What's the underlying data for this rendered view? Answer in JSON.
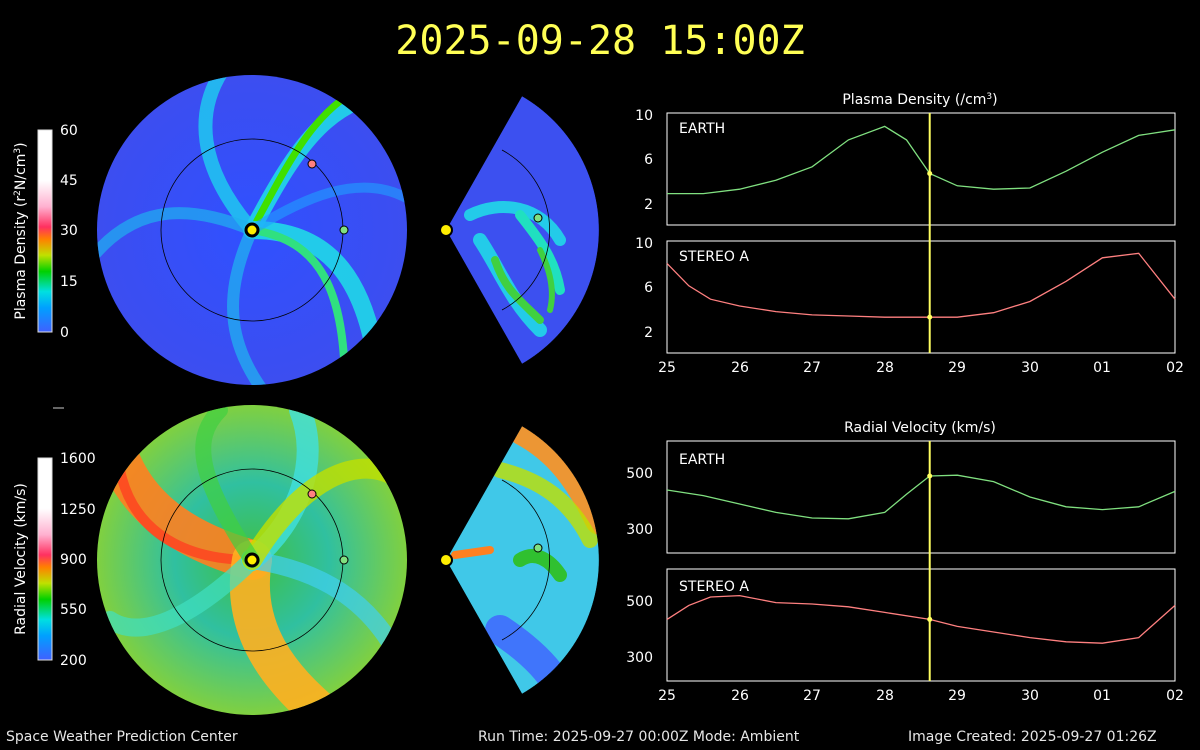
{
  "title": "2025-09-28 15:00Z",
  "footer": {
    "left": "Space Weather Prediction Center",
    "run": "Run Time: 2025-09-27 00:00Z  Mode: Ambient",
    "created": "Image Created: 2025-09-27 01:26Z"
  },
  "colorbars": [
    {
      "label_main": "Plasma Density (r",
      "label_sup1": "2",
      "label_mid": "N/cm",
      "label_sup2": "3",
      "label_end": ")",
      "ticks": [
        "60",
        "45",
        "30",
        "15",
        "0"
      ]
    },
    {
      "label_main": "Radial Velocity (km/s)",
      "ticks": [
        "1600",
        "1250",
        "900",
        "550",
        "200"
      ]
    }
  ],
  "colors": {
    "earth": "#80e080",
    "stereo": "#ff8080",
    "marker": "#ffff60",
    "title": "#ffff55",
    "sun": "#ffee00"
  },
  "chart_data": [
    {
      "type": "line",
      "title_main": "Plasma Density (/cm",
      "title_sup": "3",
      "title_end": ")",
      "x_ticks": [
        "25",
        "26",
        "27",
        "28",
        "29",
        "30",
        "01",
        "02"
      ],
      "current_time_index": 3.62,
      "panels": [
        {
          "label": "EARTH",
          "color": "#80e080",
          "ylim": [
            0,
            10
          ],
          "yticks": [
            "2",
            "6",
            "10"
          ],
          "x": [
            0,
            0.5,
            1,
            1.5,
            2,
            2.5,
            3,
            3.3,
            3.62,
            4,
            4.5,
            5,
            5.5,
            6,
            6.5,
            7
          ],
          "y": [
            2.8,
            2.8,
            3.2,
            4.0,
            5.2,
            7.6,
            8.8,
            7.6,
            4.6,
            3.5,
            3.2,
            3.3,
            4.8,
            6.5,
            8.0,
            8.5
          ]
        },
        {
          "label": "STEREO A",
          "color": "#ff8080",
          "ylim": [
            0,
            10
          ],
          "yticks": [
            "2",
            "6",
            "10"
          ],
          "x": [
            0,
            0.3,
            0.6,
            1,
            1.5,
            2,
            2.5,
            3,
            3.62,
            4,
            4.5,
            5,
            5.5,
            6,
            6.5,
            7
          ],
          "y": [
            8.0,
            6.0,
            4.8,
            4.2,
            3.7,
            3.4,
            3.3,
            3.2,
            3.2,
            3.2,
            3.6,
            4.6,
            6.4,
            8.5,
            8.9,
            4.8
          ]
        }
      ]
    },
    {
      "type": "line",
      "title": "Radial Velocity (km/s)",
      "x_ticks": [
        "25",
        "26",
        "27",
        "28",
        "29",
        "30",
        "01",
        "02"
      ],
      "current_time_index": 3.62,
      "panels": [
        {
          "label": "EARTH",
          "color": "#80e080",
          "ylim": [
            200,
            600
          ],
          "yticks": [
            "300",
            "500"
          ],
          "x": [
            0,
            0.5,
            1,
            1.5,
            2,
            2.5,
            3,
            3.3,
            3.62,
            4,
            4.5,
            5,
            5.5,
            6,
            6.5,
            7
          ],
          "y": [
            425,
            405,
            375,
            345,
            325,
            322,
            345,
            410,
            475,
            478,
            455,
            400,
            365,
            355,
            365,
            420
          ]
        },
        {
          "label": "STEREO A",
          "color": "#ff8080",
          "ylim": [
            200,
            600
          ],
          "yticks": [
            "300",
            "500"
          ],
          "x": [
            0,
            0.3,
            0.6,
            1,
            1.5,
            2,
            2.5,
            3,
            3.62,
            4,
            4.5,
            5,
            5.5,
            6,
            6.5,
            7
          ],
          "y": [
            420,
            470,
            500,
            505,
            480,
            475,
            465,
            445,
            420,
            395,
            375,
            355,
            340,
            335,
            355,
            470
          ]
        }
      ]
    }
  ]
}
